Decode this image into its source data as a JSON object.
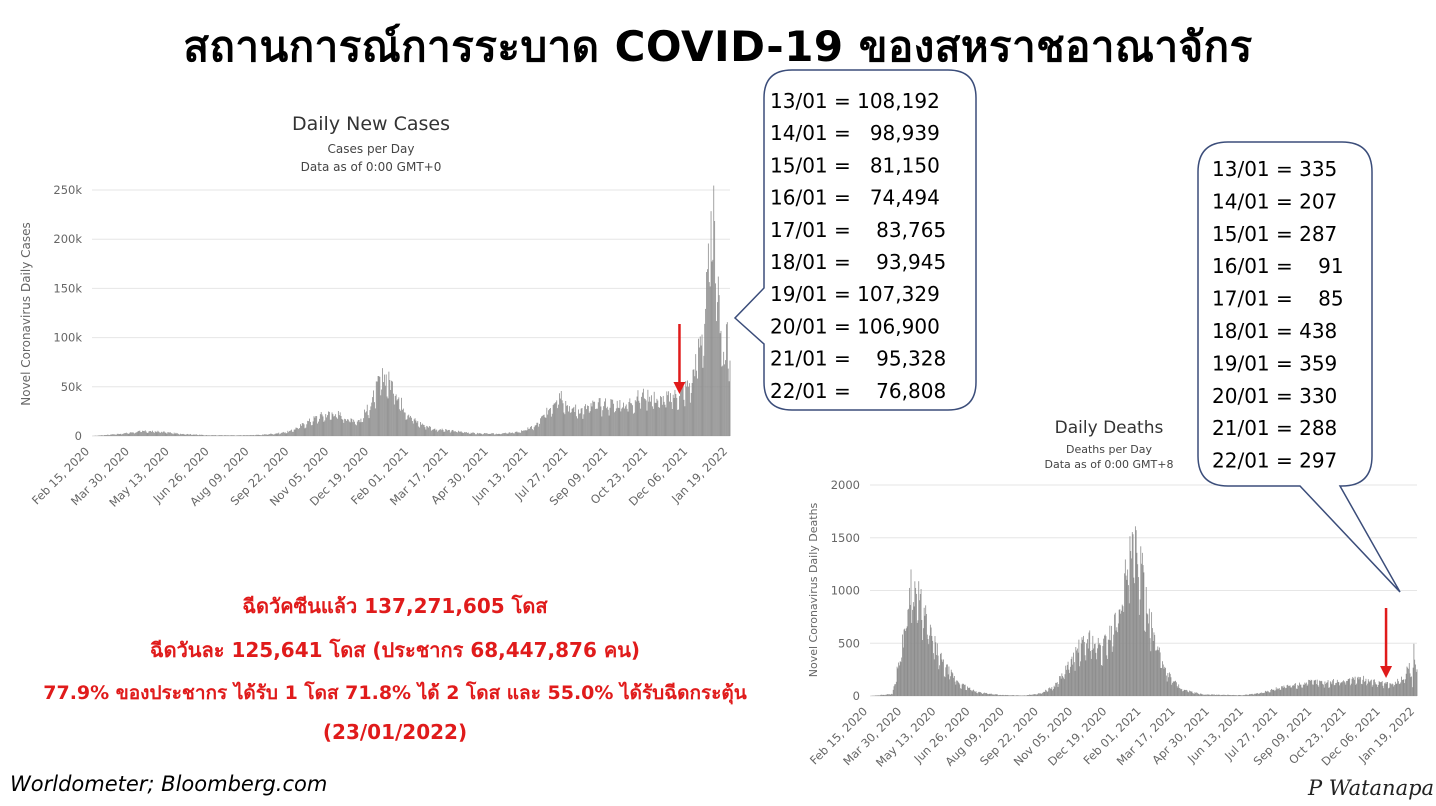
{
  "title": "สถานการณ์การระบาด COVID-19 ของสหราชอาณาจักร",
  "colors": {
    "bar": "#8c8c8c",
    "arrow": "#e01b1b",
    "callout_border": "#3b4d7a",
    "highlight": "#e01b1b"
  },
  "chart_data": [
    {
      "type": "bar",
      "title": "Daily New Cases",
      "subtitle_1": "Cases per Day",
      "subtitle_2": "Data as of 0:00 GMT+0",
      "ylabel": "Novel Coronavirus Daily Cases",
      "ylim": [
        0,
        250000
      ],
      "yticks": [
        "0",
        "50k",
        "100k",
        "150k",
        "200k",
        "250k"
      ],
      "xticks": [
        "Feb 15, 2020",
        "Mar 30, 2020",
        "May 13, 2020",
        "Jun 26, 2020",
        "Aug 09, 2020",
        "Sep 22, 2020",
        "Nov 05, 2020",
        "Dec 19, 2020",
        "Feb 01, 2021",
        "Mar 17, 2021",
        "Apr 30, 2021",
        "Jun 13, 2021",
        "Jul 27, 2021",
        "Sep 09, 2021",
        "Oct 23, 2021",
        "Dec 06, 2021",
        "Jan 19, 2022"
      ],
      "x_start": "2020-02-15",
      "x_end": "2022-01-22",
      "profile_points": [
        [
          "2020-02-15",
          0
        ],
        [
          "2020-03-20",
          2500
        ],
        [
          "2020-04-10",
          5000
        ],
        [
          "2020-05-01",
          4500
        ],
        [
          "2020-05-20",
          2500
        ],
        [
          "2020-06-20",
          900
        ],
        [
          "2020-07-25",
          700
        ],
        [
          "2020-08-20",
          1200
        ],
        [
          "2020-09-10",
          3000
        ],
        [
          "2020-09-22",
          5000
        ],
        [
          "2020-10-10",
          14000
        ],
        [
          "2020-10-25",
          21000
        ],
        [
          "2020-11-10",
          24000
        ],
        [
          "2020-11-25",
          18000
        ],
        [
          "2020-12-08",
          16000
        ],
        [
          "2020-12-20",
          33000
        ],
        [
          "2020-12-29",
          55000
        ],
        [
          "2021-01-05",
          62000
        ],
        [
          "2021-01-15",
          50000
        ],
        [
          "2021-01-25",
          30000
        ],
        [
          "2021-02-08",
          15000
        ],
        [
          "2021-03-01",
          7000
        ],
        [
          "2021-03-20",
          5500
        ],
        [
          "2021-04-15",
          2800
        ],
        [
          "2021-05-10",
          2300
        ],
        [
          "2021-06-01",
          4000
        ],
        [
          "2021-06-20",
          10000
        ],
        [
          "2021-07-05",
          27000
        ],
        [
          "2021-07-17",
          47000
        ],
        [
          "2021-07-27",
          30000
        ],
        [
          "2021-08-10",
          27000
        ],
        [
          "2021-08-25",
          33000
        ],
        [
          "2021-09-10",
          34000
        ],
        [
          "2021-09-28",
          33000
        ],
        [
          "2021-10-20",
          44000
        ],
        [
          "2021-11-05",
          37000
        ],
        [
          "2021-11-25",
          43000
        ],
        [
          "2021-12-10",
          55000
        ],
        [
          "2021-12-18",
          90000
        ],
        [
          "2021-12-25",
          120000
        ],
        [
          "2021-12-30",
          185000
        ],
        [
          "2022-01-04",
          218000
        ],
        [
          "2022-01-08",
          150000
        ],
        [
          "2022-01-13",
          108192
        ],
        [
          "2022-01-16",
          74494
        ],
        [
          "2022-01-19",
          107329
        ],
        [
          "2022-01-22",
          76808
        ]
      ],
      "arrow_at": "2021-11-27"
    },
    {
      "type": "bar",
      "title": "Daily Deaths",
      "subtitle_1": "Deaths per Day",
      "subtitle_2": "Data as of 0:00 GMT+8",
      "ylabel": "Novel Coronavirus Daily Deaths",
      "ylim": [
        0,
        2000
      ],
      "yticks": [
        "0",
        "500",
        "1000",
        "1500",
        "2000"
      ],
      "xticks": [
        "Feb 15, 2020",
        "Mar 30, 2020",
        "May 13, 2020",
        "Jun 26, 2020",
        "Aug 09, 2020",
        "Sep 22, 2020",
        "Nov 05, 2020",
        "Dec 19, 2020",
        "Feb 01, 2021",
        "Mar 17, 2021",
        "Apr 30, 2021",
        "Jun 13, 2021",
        "Jul 27, 2021",
        "Sep 09, 2021",
        "Oct 23, 2021",
        "Dec 06, 2021",
        "Jan 19, 2022"
      ],
      "x_start": "2020-02-15",
      "x_end": "2022-01-22",
      "profile_points": [
        [
          "2020-02-15",
          0
        ],
        [
          "2020-03-15",
          20
        ],
        [
          "2020-03-28",
          500
        ],
        [
          "2020-04-08",
          1100
        ],
        [
          "2020-04-20",
          900
        ],
        [
          "2020-05-05",
          550
        ],
        [
          "2020-05-20",
          300
        ],
        [
          "2020-06-10",
          120
        ],
        [
          "2020-07-01",
          40
        ],
        [
          "2020-08-01",
          10
        ],
        [
          "2020-09-01",
          5
        ],
        [
          "2020-09-22",
          25
        ],
        [
          "2020-10-10",
          90
        ],
        [
          "2020-10-25",
          250
        ],
        [
          "2020-11-10",
          450
        ],
        [
          "2020-11-25",
          550
        ],
        [
          "2020-12-10",
          450
        ],
        [
          "2020-12-28",
          700
        ],
        [
          "2021-01-12",
          1200
        ],
        [
          "2021-01-22",
          1450
        ],
        [
          "2021-02-01",
          1150
        ],
        [
          "2021-02-15",
          600
        ],
        [
          "2021-03-05",
          220
        ],
        [
          "2021-03-25",
          60
        ],
        [
          "2021-04-20",
          15
        ],
        [
          "2021-06-10",
          8
        ],
        [
          "2021-07-05",
          30
        ],
        [
          "2021-07-27",
          80
        ],
        [
          "2021-08-20",
          110
        ],
        [
          "2021-09-10",
          140
        ],
        [
          "2021-10-01",
          130
        ],
        [
          "2021-10-25",
          160
        ],
        [
          "2021-11-10",
          170
        ],
        [
          "2021-12-01",
          130
        ],
        [
          "2021-12-20",
          110
        ],
        [
          "2022-01-05",
          170
        ],
        [
          "2022-01-13",
          335
        ],
        [
          "2022-01-16",
          91
        ],
        [
          "2022-01-18",
          438
        ],
        [
          "2022-01-22",
          297
        ]
      ],
      "arrow_at": "2021-12-13"
    }
  ],
  "cases_callout": {
    "lines": [
      "13/01 = 108,192",
      "14/01 =   98,939",
      "15/01 =   81,150",
      "16/01 =   74,494",
      "17/01 =    83,765",
      "18/01 =    93,945",
      "19/01 = 107,329",
      "20/01 = 106,900",
      "21/01 =    95,328",
      "22/01 =    76,808"
    ]
  },
  "deaths_callout": {
    "lines": [
      "13/01 = 335",
      "14/01 = 207",
      "15/01 = 287",
      "16/01 =    91",
      "17/01 =    85",
      "18/01 = 438",
      "19/01 = 359",
      "20/01 = 330",
      "21/01 = 288",
      "22/01 = 297"
    ]
  },
  "vaccination": {
    "line1": "ฉีดวัคซีนแล้ว 137,271,605 โดส",
    "line2": "ฉีดวันละ 125,641 โดส (ประชากร 68,447,876 คน)",
    "line3": "77.9% ของประชากร ได้รับ 1 โดส 71.8% ได้ 2 โดส และ 55.0% ได้รับฉีดกระตุ้น",
    "line4": "(23/01/2022)"
  },
  "source": "Worldometer;  Bloomberg.com",
  "signature": "P Watanapa"
}
